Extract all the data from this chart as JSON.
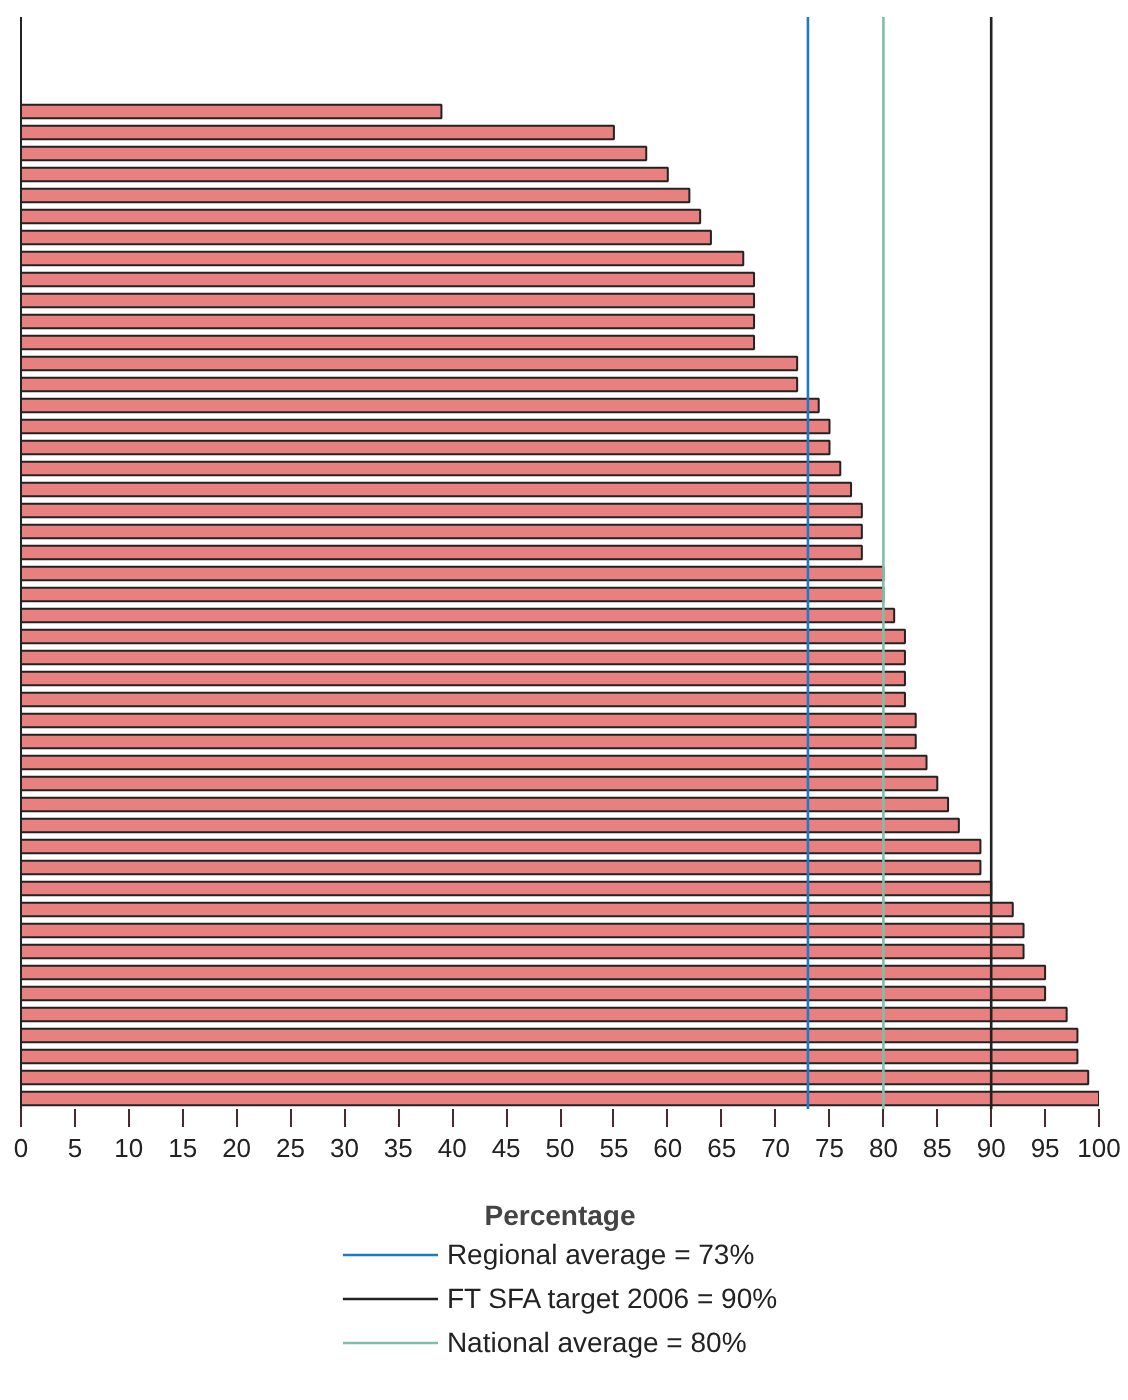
{
  "chart_data": {
    "type": "bar",
    "orientation": "horizontal",
    "xlabel": "Percentage",
    "categories": [
      null,
      null,
      null,
      null,
      null,
      null,
      null,
      null,
      null,
      null,
      null,
      null,
      null,
      null,
      null,
      null,
      null,
      null,
      null,
      null,
      null,
      null,
      null,
      null,
      null,
      null,
      null,
      null,
      null,
      null,
      null,
      null,
      null,
      null,
      null,
      null,
      null,
      null,
      null,
      null,
      null,
      null,
      null,
      null,
      null,
      null,
      null,
      null,
      null,
      null,
      null,
      null
    ],
    "values": [
      null,
      null,
      null,
      null,
      39,
      55,
      58,
      60,
      62,
      63,
      64,
      67,
      68,
      68,
      68,
      68,
      72,
      72,
      74,
      75,
      75,
      76,
      77,
      78,
      78,
      78,
      80,
      80,
      81,
      82,
      82,
      82,
      82,
      83,
      83,
      84,
      85,
      86,
      87,
      89,
      89,
      90,
      92,
      93,
      93,
      95,
      95,
      97,
      98,
      98,
      99,
      100
    ],
    "color": "#e88080",
    "xlim": [
      0,
      100
    ],
    "xticks": [
      0,
      5,
      10,
      15,
      20,
      25,
      30,
      35,
      40,
      45,
      50,
      55,
      60,
      65,
      70,
      75,
      80,
      85,
      90,
      95,
      100
    ],
    "tick_labels": "x",
    "legend": "bottom",
    "ref_lines": [
      {
        "axis": "x",
        "value": 73,
        "label": "Regional average = 73%",
        "color": "#1f78c8"
      },
      {
        "axis": "x",
        "value": 90,
        "label": "FT SFA target 2006 = 90%",
        "color": "#222222"
      },
      {
        "axis": "x",
        "value": 80,
        "label": "National average = 80%",
        "color": "#7fbfa8"
      }
    ]
  }
}
